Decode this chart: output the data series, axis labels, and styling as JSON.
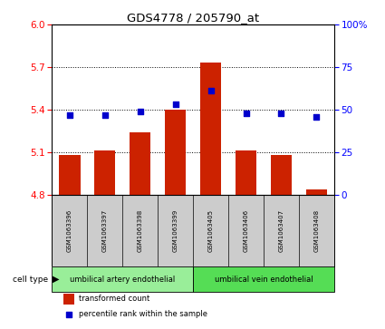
{
  "title": "GDS4778 / 205790_at",
  "samples": [
    "GSM1063396",
    "GSM1063397",
    "GSM1063398",
    "GSM1063399",
    "GSM1063405",
    "GSM1063406",
    "GSM1063407",
    "GSM1063408"
  ],
  "transformed_counts": [
    5.08,
    5.11,
    5.24,
    5.4,
    5.73,
    5.11,
    5.08,
    4.84
  ],
  "percentile_ranks": [
    47,
    47,
    49,
    53,
    61,
    48,
    48,
    46
  ],
  "ylim_left": [
    4.8,
    6.0
  ],
  "yticks_left": [
    4.8,
    5.1,
    5.4,
    5.7,
    6.0
  ],
  "ylim_right": [
    0,
    100
  ],
  "yticks_right": [
    0,
    25,
    50,
    75,
    100
  ],
  "yticklabels_right": [
    "0",
    "25",
    "50",
    "75",
    "100%"
  ],
  "bar_color": "#cc2200",
  "dot_color": "#0000cc",
  "background_color": "#ffffff",
  "cell_type_groups": [
    {
      "label": "umbilical artery endothelial",
      "color": "#99ee99"
    },
    {
      "label": "umbilical vein endothelial",
      "color": "#55dd55"
    }
  ],
  "cell_type_label": "cell type",
  "legend_bar_label": "transformed count",
  "legend_dot_label": "percentile rank within the sample",
  "bar_width": 0.6,
  "base_value": 4.8,
  "dotted_grid_lines": [
    5.1,
    5.4,
    5.7
  ]
}
